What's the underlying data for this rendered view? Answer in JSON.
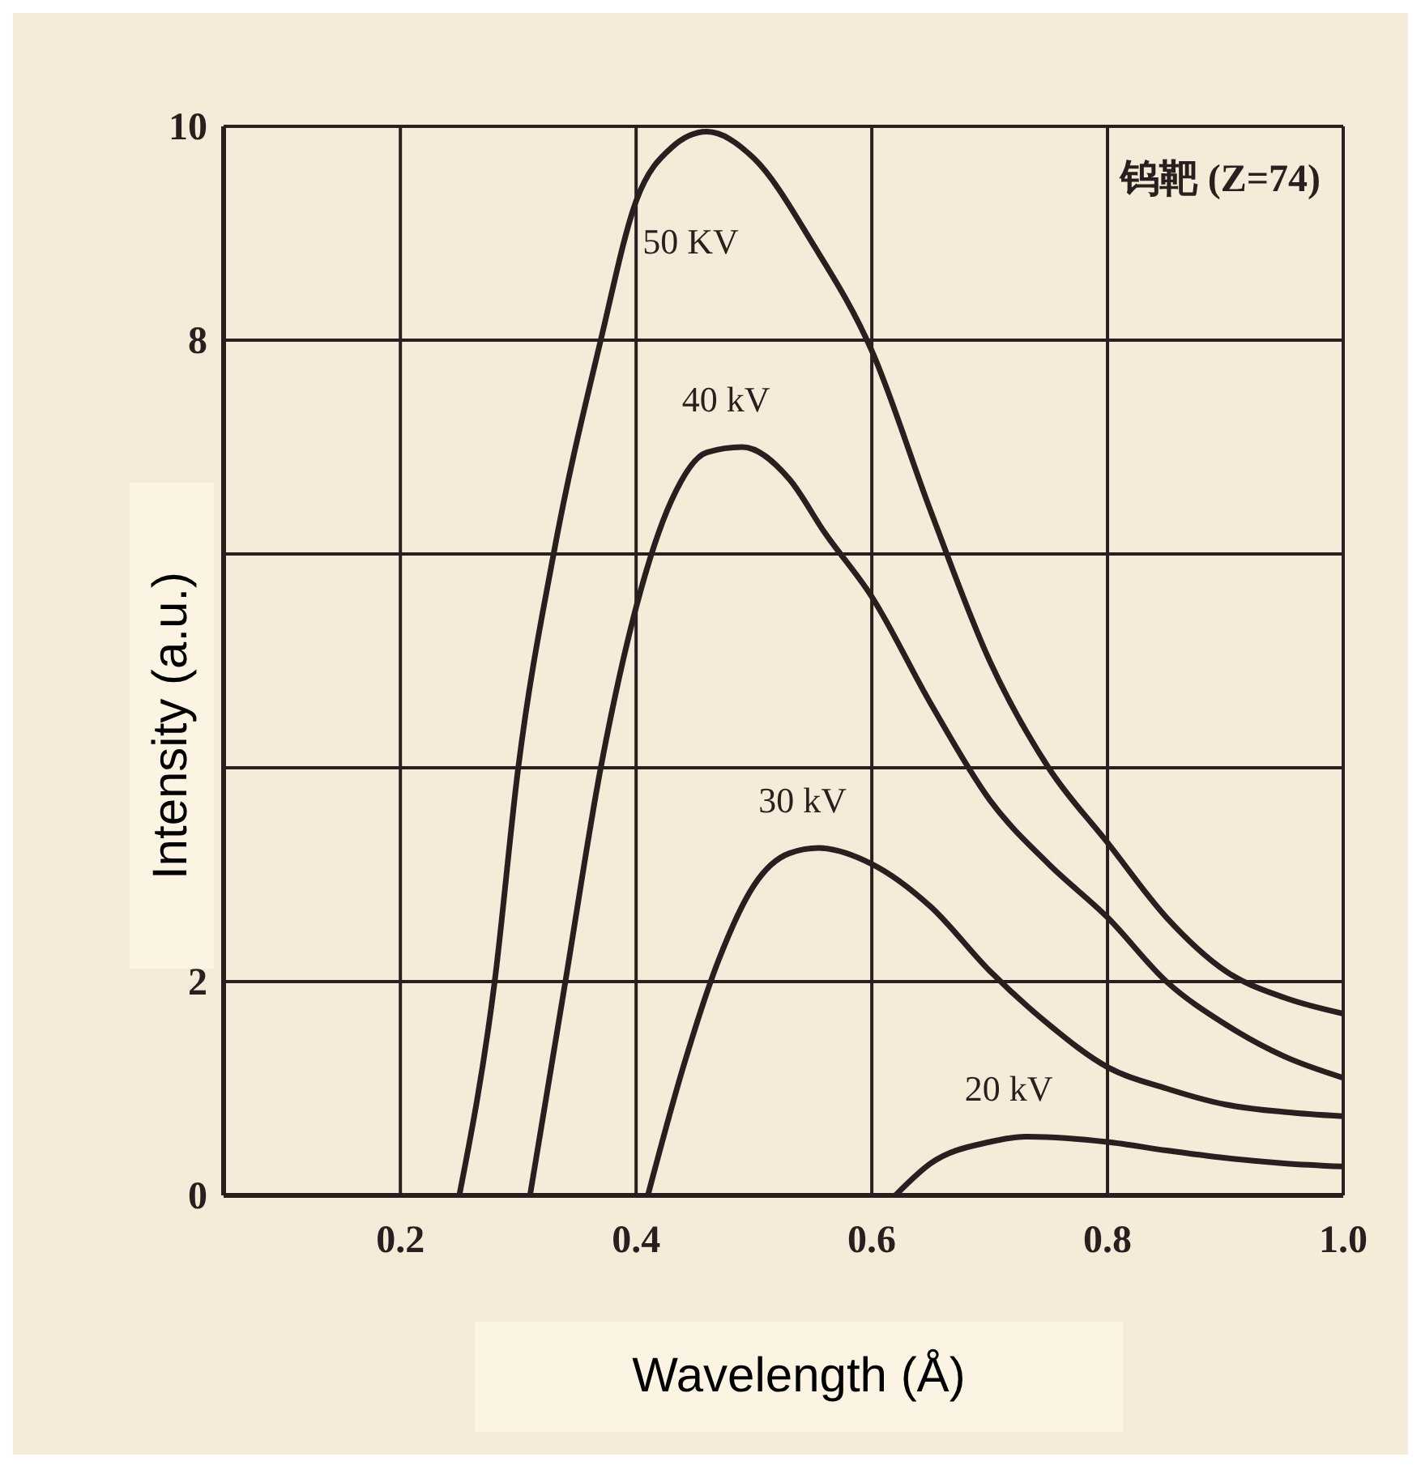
{
  "chart_data": {
    "type": "line",
    "xlabel": "Wavelength (Å)",
    "ylabel": "Intensity (a.u.)",
    "annotations": [
      "钨靶 (Z=74)"
    ],
    "xlim": [
      0.05,
      1.0
    ],
    "xticks": [
      {
        "value": 0.2,
        "label": "0.2"
      },
      {
        "value": 0.4,
        "label": "0.4"
      },
      {
        "value": 0.6,
        "label": "0.6"
      },
      {
        "value": 0.8,
        "label": "0.8"
      },
      {
        "value": 1.0,
        "label": "1.0"
      }
    ],
    "ylim": [
      0,
      10
    ],
    "yticks": [
      0,
      2,
      {
        "value": 4,
        "label": null
      },
      {
        "value": 6,
        "label": null
      },
      8,
      10
    ],
    "grid": true,
    "marker": "none",
    "line_style": "solid",
    "series": [
      {
        "name": "50 KV",
        "color": "#2a1f1f",
        "x": [
          0.25,
          0.28,
          0.3,
          0.33,
          0.37,
          0.4,
          0.43,
          0.46,
          0.5,
          0.55,
          0.6,
          0.65,
          0.7,
          0.75,
          0.8,
          0.85,
          0.9,
          0.95,
          1.0
        ],
        "values": [
          0,
          2,
          4,
          6,
          8,
          9.3,
          9.8,
          9.95,
          9.7,
          8.9,
          7.9,
          6.4,
          5.0,
          4.0,
          3.3,
          2.6,
          2.1,
          1.85,
          1.7
        ]
      },
      {
        "name": "40 kV",
        "color": "#2a1f1f",
        "x": [
          0.31,
          0.34,
          0.37,
          0.4,
          0.43,
          0.46,
          0.49,
          0.53,
          0.56,
          0.6,
          0.65,
          0.7,
          0.75,
          0.8,
          0.85,
          0.9,
          0.95,
          1.0
        ],
        "values": [
          0,
          2,
          4,
          5.5,
          6.5,
          6.95,
          7.0,
          6.7,
          6.2,
          5.6,
          4.6,
          3.7,
          3.1,
          2.6,
          2.0,
          1.6,
          1.3,
          1.1
        ]
      },
      {
        "name": "30 kV",
        "color": "#2a1f1f",
        "x": [
          0.41,
          0.44,
          0.47,
          0.5,
          0.53,
          0.555,
          0.6,
          0.65,
          0.7,
          0.75,
          0.8,
          0.85,
          0.9,
          0.95,
          1.0
        ],
        "values": [
          0,
          1.2,
          2.2,
          2.9,
          3.2,
          3.25,
          3.1,
          2.7,
          2.1,
          1.6,
          1.2,
          1.0,
          0.85,
          0.78,
          0.74
        ]
      },
      {
        "name": "20 kV",
        "color": "#2a1f1f",
        "x": [
          0.62,
          0.65,
          0.7,
          0.73,
          0.8,
          0.85,
          0.9,
          0.95,
          1.0
        ],
        "values": [
          0,
          0.3,
          0.5,
          0.55,
          0.5,
          0.42,
          0.35,
          0.3,
          0.27
        ]
      }
    ]
  }
}
